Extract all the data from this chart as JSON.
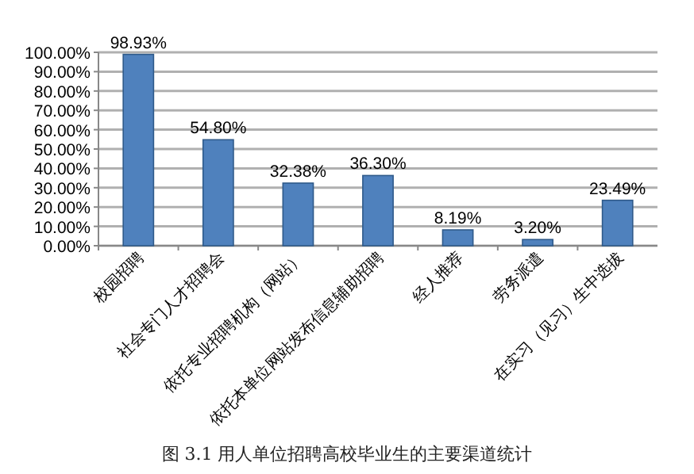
{
  "chart_data": {
    "type": "bar",
    "categories": [
      "校园招聘",
      "社会专门人才招聘会",
      "依托专业招聘机构（网站）",
      "依托本单位网站发布信息辅助招聘",
      "经人推荐",
      "劳务派遣",
      "在实习（见习）生中选拔"
    ],
    "values": [
      98.93,
      54.8,
      32.38,
      36.3,
      8.19,
      3.2,
      23.49
    ],
    "value_labels": [
      "98.93%",
      "54.80%",
      "32.38%",
      "36.30%",
      "8.19%",
      "3.20%",
      "23.49%"
    ],
    "color": "#4f81bd",
    "ylim": [
      0,
      100
    ],
    "yticks": [
      {
        "value": 0,
        "label": "0.00%"
      },
      {
        "value": 10,
        "label": "10.00%"
      },
      {
        "value": 20,
        "label": "20.00%"
      },
      {
        "value": 30,
        "label": "30.00%"
      },
      {
        "value": 40,
        "label": "40.00%"
      },
      {
        "value": 50,
        "label": "50.00%"
      },
      {
        "value": 60,
        "label": "60.00%"
      },
      {
        "value": 70,
        "label": "70.00%"
      },
      {
        "value": 80,
        "label": "80.00%"
      },
      {
        "value": 90,
        "label": "90.00%"
      },
      {
        "value": 100,
        "label": "100.00%"
      }
    ],
    "grid": "y",
    "annotations": [
      "图 3.1  用人单位招聘高校毕业生的主要渠道统计"
    ]
  }
}
